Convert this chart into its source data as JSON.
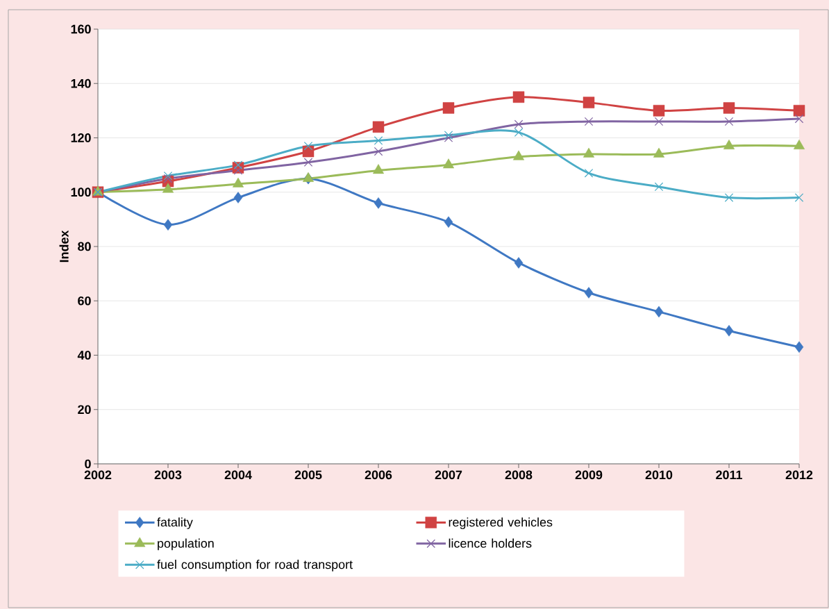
{
  "chart_data": {
    "type": "line",
    "ylabel": "Index",
    "x": [
      2002,
      2003,
      2004,
      2005,
      2006,
      2007,
      2008,
      2009,
      2010,
      2011,
      2012
    ],
    "xlim": [
      2002,
      2012
    ],
    "xticks": [
      2002,
      2003,
      2004,
      2005,
      2006,
      2007,
      2008,
      2009,
      2010,
      2011,
      2012
    ],
    "ylim": [
      0,
      160
    ],
    "yticks": [
      0,
      20,
      40,
      60,
      80,
      100,
      120,
      140,
      160
    ],
    "grid": "y",
    "legend": "bottom",
    "series": [
      {
        "name": "fatality",
        "color": "#3f78c3",
        "marker": "diamond",
        "values": [
          100,
          88,
          98,
          105,
          96,
          89,
          74,
          63,
          56,
          49,
          43
        ]
      },
      {
        "name": "registered vehicles",
        "color": "#d04343",
        "marker": "square",
        "values": [
          100,
          104,
          109,
          115,
          124,
          131,
          135,
          133,
          130,
          131,
          130
        ]
      },
      {
        "name": "population",
        "color": "#9bbb59",
        "marker": "triangle",
        "values": [
          100,
          101,
          103,
          105,
          108,
          110,
          113,
          114,
          114,
          117,
          117
        ]
      },
      {
        "name": "licence holders",
        "color": "#8064a2",
        "marker": "cross",
        "values": [
          100,
          105,
          108,
          111,
          115,
          120,
          125,
          126,
          126,
          126,
          127
        ]
      },
      {
        "name": "fuel consumption for road transport",
        "color": "#4bacc6",
        "marker": "cross",
        "values": [
          100,
          106,
          110,
          117,
          119,
          121,
          122,
          107,
          102,
          98,
          98
        ]
      }
    ]
  }
}
